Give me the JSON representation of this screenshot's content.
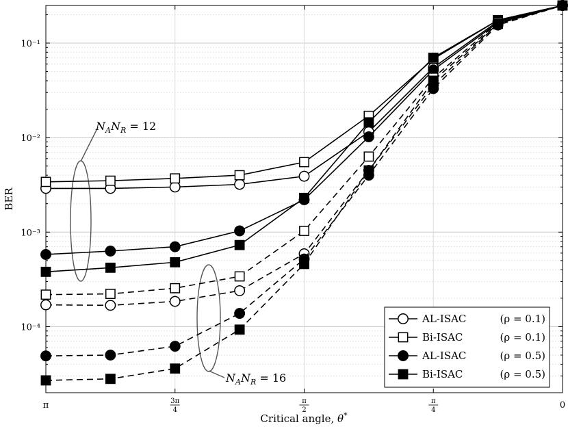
{
  "chart_data": {
    "type": "line",
    "xlabel": "Critical angle, θ*",
    "ylabel": "BER",
    "yscale": "log",
    "ylim": [
      2e-05,
      0.25
    ],
    "x_ticks": [
      "π",
      "3π/4",
      "π/2",
      "π/4",
      "0"
    ],
    "y_ticks": [
      "10⁻⁴",
      "10⁻³",
      "10⁻²",
      "10⁻¹"
    ],
    "grid": true,
    "legend_position": "bottom-right",
    "legend": [
      {
        "label": "AL-ISAC",
        "param": "(ρ = 0.1)",
        "marker": "circle",
        "fill": "white"
      },
      {
        "label": "Bi-ISAC",
        "param": "(ρ = 0.1)",
        "marker": "square",
        "fill": "white"
      },
      {
        "label": "AL-ISAC",
        "param": "(ρ = 0.5)",
        "marker": "circle",
        "fill": "black"
      },
      {
        "label": "Bi-ISAC",
        "param": "(ρ = 0.5)",
        "marker": "square",
        "fill": "black"
      }
    ],
    "annotations": [
      {
        "text": "N_A N_R = 12"
      },
      {
        "text": "N_A N_R = 16"
      }
    ],
    "x": [
      3.1416,
      2.7489,
      2.3562,
      1.9635,
      1.5708,
      1.1781,
      0.7854,
      0.3927,
      0.0
    ],
    "series": [
      {
        "group": "AL-ISAC (ρ = 0.1)",
        "NANR": 12,
        "marker": "circle",
        "fill": "white",
        "dash": false,
        "values": [
          0.0029,
          0.0029,
          0.003,
          0.0032,
          0.0039,
          0.0115,
          0.055,
          0.17,
          0.25
        ]
      },
      {
        "group": "Bi-ISAC (ρ = 0.1)",
        "NANR": 12,
        "marker": "square",
        "fill": "white",
        "dash": false,
        "values": [
          0.0034,
          0.0035,
          0.0037,
          0.004,
          0.0055,
          0.017,
          0.068,
          0.175,
          0.25
        ]
      },
      {
        "group": "AL-ISAC (ρ = 0.5)",
        "NANR": 12,
        "marker": "circle",
        "fill": "black",
        "dash": false,
        "values": [
          0.00058,
          0.00063,
          0.0007,
          0.00103,
          0.0022,
          0.0102,
          0.052,
          0.165,
          0.25
        ]
      },
      {
        "group": "Bi-ISAC (ρ = 0.5)",
        "NANR": 12,
        "marker": "square",
        "fill": "black",
        "dash": false,
        "values": [
          0.00038,
          0.00042,
          0.00048,
          0.00073,
          0.0023,
          0.0145,
          0.07,
          0.175,
          0.25
        ]
      },
      {
        "group": "AL-ISAC (ρ = 0.1)",
        "NANR": 16,
        "marker": "circle",
        "fill": "white",
        "dash": true,
        "values": [
          0.00017,
          0.000168,
          0.000185,
          0.00024,
          0.00059,
          0.0045,
          0.036,
          0.16,
          0.25
        ]
      },
      {
        "group": "Bi-ISAC (ρ = 0.1)",
        "NANR": 16,
        "marker": "square",
        "fill": "white",
        "dash": true,
        "values": [
          0.000218,
          0.000222,
          0.000255,
          0.00034,
          0.00103,
          0.0063,
          0.043,
          0.165,
          0.25
        ]
      },
      {
        "group": "AL-ISAC (ρ = 0.5)",
        "NANR": 16,
        "marker": "circle",
        "fill": "black",
        "dash": true,
        "values": [
          4.9e-05,
          5e-05,
          6.2e-05,
          0.000138,
          0.00052,
          0.004,
          0.033,
          0.155,
          0.25
        ]
      },
      {
        "group": "Bi-ISAC (ρ = 0.5)",
        "NANR": 16,
        "marker": "square",
        "fill": "black",
        "dash": true,
        "values": [
          2.7e-05,
          2.8e-05,
          3.6e-05,
          9.3e-05,
          0.00046,
          0.0045,
          0.04,
          0.16,
          0.25
        ]
      }
    ]
  }
}
